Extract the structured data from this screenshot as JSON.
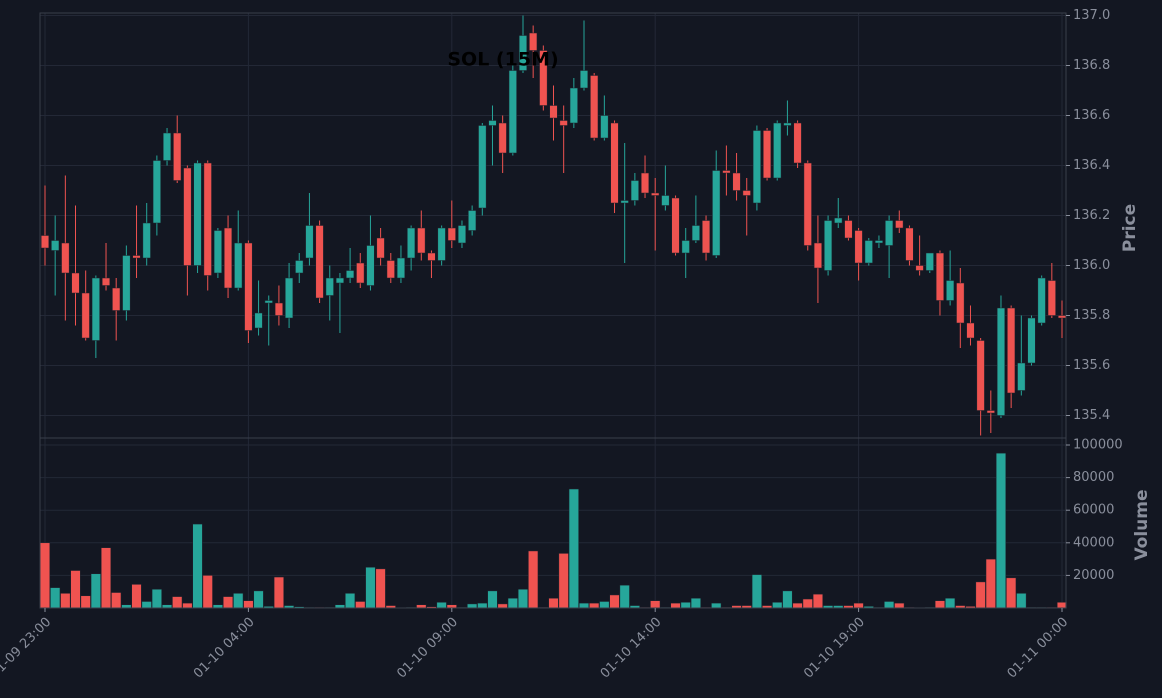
{
  "chart_data": {
    "type": "candlestick",
    "title": "SOL (15M)",
    "x": [
      "01-09 23:00",
      "01-09 23:15",
      "01-09 23:30",
      "01-09 23:45",
      "01-10 00:00",
      "01-10 00:15",
      "01-10 00:30",
      "01-10 00:45",
      "01-10 01:00",
      "01-10 01:15",
      "01-10 01:30",
      "01-10 01:45",
      "01-10 02:00",
      "01-10 02:15",
      "01-10 02:30",
      "01-10 02:45",
      "01-10 03:00",
      "01-10 03:15",
      "01-10 03:30",
      "01-10 03:45",
      "01-10 04:00",
      "01-10 04:15",
      "01-10 04:30",
      "01-10 04:45",
      "01-10 05:00",
      "01-10 05:15",
      "01-10 05:30",
      "01-10 05:45",
      "01-10 06:00",
      "01-10 06:15",
      "01-10 06:30",
      "01-10 06:45",
      "01-10 07:00",
      "01-10 07:15",
      "01-10 07:30",
      "01-10 07:45",
      "01-10 08:00",
      "01-10 08:15",
      "01-10 08:30",
      "01-10 08:45",
      "01-10 09:00",
      "01-10 09:15",
      "01-10 09:30",
      "01-10 09:45",
      "01-10 10:00",
      "01-10 10:15",
      "01-10 10:30",
      "01-10 10:45",
      "01-10 11:00",
      "01-10 11:15",
      "01-10 11:30",
      "01-10 11:45",
      "01-10 12:00",
      "01-10 12:15",
      "01-10 12:30",
      "01-10 12:45",
      "01-10 13:00",
      "01-10 13:15",
      "01-10 13:30",
      "01-10 13:45",
      "01-10 14:00",
      "01-10 14:15",
      "01-10 14:30",
      "01-10 14:45",
      "01-10 15:00",
      "01-10 15:15",
      "01-10 15:30",
      "01-10 15:45",
      "01-10 16:00",
      "01-10 16:15",
      "01-10 16:30",
      "01-10 16:45",
      "01-10 17:00",
      "01-10 17:15",
      "01-10 17:30",
      "01-10 17:45",
      "01-10 18:00",
      "01-10 18:15",
      "01-10 18:30",
      "01-10 18:45",
      "01-10 19:00",
      "01-10 19:15",
      "01-10 19:30",
      "01-10 19:45",
      "01-10 20:00",
      "01-10 20:15",
      "01-10 20:30",
      "01-10 20:45",
      "01-10 21:00",
      "01-10 21:15",
      "01-10 21:30",
      "01-10 21:45",
      "01-10 22:00",
      "01-10 22:15",
      "01-10 22:30",
      "01-10 22:45",
      "01-10 23:00",
      "01-10 23:15",
      "01-10 23:30",
      "01-10 23:45",
      "01-11 00:00"
    ],
    "open": [
      136.12,
      136.06,
      136.09,
      135.97,
      135.89,
      135.7,
      135.95,
      135.91,
      135.82,
      136.04,
      136.03,
      136.17,
      136.42,
      136.53,
      136.39,
      136.0,
      136.41,
      135.97,
      136.15,
      135.91,
      136.09,
      135.75,
      135.85,
      135.85,
      135.79,
      135.97,
      136.03,
      136.16,
      135.88,
      135.93,
      135.95,
      136.01,
      135.92,
      136.11,
      136.02,
      135.95,
      136.03,
      136.15,
      136.05,
      136.02,
      136.15,
      136.09,
      136.14,
      136.23,
      136.56,
      136.57,
      136.45,
      136.78,
      136.93,
      136.86,
      136.64,
      136.58,
      136.57,
      136.71,
      136.76,
      136.51,
      136.57,
      136.25,
      136.26,
      136.37,
      136.29,
      136.24,
      136.27,
      136.05,
      136.1,
      136.18,
      136.04,
      136.38,
      136.37,
      136.3,
      136.25,
      136.54,
      136.35,
      136.56,
      136.57,
      136.41,
      136.09,
      135.98,
      136.17,
      136.18,
      136.14,
      136.01,
      136.09,
      136.08,
      136.18,
      136.15,
      136.0,
      135.98,
      136.05,
      135.86,
      135.93,
      135.77,
      135.7,
      135.42,
      135.4,
      135.83,
      135.5,
      135.61,
      135.77,
      135.94,
      135.8
    ],
    "high": [
      136.32,
      136.2,
      136.36,
      136.24,
      135.98,
      135.96,
      136.09,
      135.95,
      136.08,
      136.24,
      136.25,
      136.44,
      136.55,
      136.6,
      136.4,
      136.42,
      136.42,
      136.15,
      136.2,
      136.22,
      136.1,
      135.94,
      135.88,
      135.92,
      136.01,
      136.05,
      136.29,
      136.18,
      136.0,
      135.97,
      136.07,
      136.05,
      136.2,
      136.15,
      136.05,
      136.08,
      136.16,
      136.22,
      136.06,
      136.16,
      136.26,
      136.18,
      136.24,
      136.57,
      136.64,
      136.6,
      136.8,
      137.0,
      136.96,
      136.88,
      136.72,
      136.64,
      136.75,
      136.98,
      136.77,
      136.68,
      136.58,
      136.49,
      136.37,
      136.44,
      136.35,
      136.4,
      136.28,
      136.15,
      136.28,
      136.2,
      136.46,
      136.48,
      136.45,
      136.35,
      136.56,
      136.55,
      136.58,
      136.66,
      136.58,
      136.42,
      136.2,
      136.2,
      136.27,
      136.2,
      136.15,
      136.11,
      136.12,
      136.2,
      136.22,
      136.16,
      136.12,
      136.05,
      136.06,
      136.06,
      135.99,
      135.84,
      135.71,
      135.5,
      135.88,
      135.84,
      135.8,
      135.8,
      135.96,
      136.01,
      135.86
    ],
    "low": [
      136.0,
      135.88,
      135.78,
      135.76,
      135.7,
      135.63,
      135.9,
      135.7,
      135.78,
      135.95,
      136.0,
      136.12,
      136.4,
      136.33,
      135.88,
      135.97,
      135.9,
      135.95,
      135.87,
      135.9,
      135.69,
      135.72,
      135.68,
      135.76,
      135.75,
      135.93,
      136.0,
      135.85,
      135.78,
      135.73,
      135.93,
      135.91,
      135.9,
      136.0,
      135.93,
      135.93,
      135.98,
      136.02,
      135.95,
      136.0,
      136.07,
      136.07,
      136.12,
      136.2,
      136.4,
      136.37,
      136.44,
      136.77,
      136.75,
      136.62,
      136.5,
      136.37,
      136.55,
      136.7,
      136.5,
      136.5,
      136.21,
      136.01,
      136.24,
      136.27,
      136.06,
      136.22,
      136.04,
      135.95,
      136.09,
      136.02,
      136.03,
      136.28,
      136.26,
      136.12,
      136.22,
      136.34,
      136.34,
      136.52,
      136.39,
      136.06,
      135.85,
      135.96,
      136.15,
      136.1,
      135.94,
      136.0,
      136.07,
      135.95,
      136.13,
      136.0,
      135.96,
      135.97,
      135.8,
      135.84,
      135.67,
      135.68,
      135.32,
      135.33,
      135.39,
      135.43,
      135.48,
      135.6,
      135.76,
      135.79,
      135.71
    ],
    "close": [
      136.07,
      136.1,
      135.97,
      135.89,
      135.71,
      135.95,
      135.92,
      135.82,
      136.04,
      136.03,
      136.17,
      136.42,
      136.53,
      136.34,
      136.0,
      136.41,
      135.96,
      136.14,
      135.91,
      136.09,
      135.74,
      135.81,
      135.86,
      135.8,
      135.95,
      136.02,
      136.16,
      135.87,
      135.95,
      135.95,
      135.98,
      135.93,
      136.08,
      136.03,
      135.95,
      136.03,
      136.15,
      136.05,
      136.02,
      136.15,
      136.1,
      136.16,
      136.22,
      136.56,
      136.58,
      136.45,
      136.78,
      136.92,
      136.86,
      136.64,
      136.59,
      136.56,
      136.71,
      136.78,
      136.51,
      136.6,
      136.25,
      136.26,
      136.34,
      136.29,
      136.28,
      136.28,
      136.05,
      136.1,
      136.16,
      136.05,
      136.38,
      136.37,
      136.3,
      136.28,
      136.54,
      136.35,
      136.57,
      136.57,
      136.41,
      136.08,
      135.99,
      136.18,
      136.19,
      136.11,
      136.01,
      136.1,
      136.1,
      136.18,
      136.15,
      136.02,
      135.98,
      136.05,
      135.86,
      135.94,
      135.77,
      135.71,
      135.42,
      135.41,
      135.83,
      135.49,
      135.61,
      135.79,
      135.95,
      135.8,
      135.79
    ],
    "volume": [
      40000,
      12500,
      9000,
      23000,
      7500,
      21000,
      37000,
      9500,
      2000,
      14500,
      4000,
      11500,
      2000,
      7000,
      3000,
      51500,
      20000,
      2000,
      7000,
      9000,
      4500,
      10500,
      1000,
      19000,
      1500,
      800,
      500,
      500,
      500,
      2000,
      9000,
      4000,
      25000,
      24000,
      1500,
      200,
      500,
      2000,
      800,
      3500,
      2000,
      500,
      2500,
      3000,
      10500,
      2500,
      6000,
      11500,
      35000,
      500,
      6000,
      33500,
      73000,
      3000,
      3000,
      4000,
      8000,
      14000,
      1500,
      500,
      4500,
      500,
      3000,
      3500,
      6000,
      500,
      3000,
      500,
      1500,
      1500,
      20500,
      1500,
      3500,
      10500,
      3000,
      5500,
      8500,
      1500,
      1500,
      1500,
      3000,
      1000,
      500,
      4000,
      3000,
      500,
      200,
      500,
      4500,
      6000,
      1500,
      1000,
      16000,
      30000,
      95000,
      18500,
      9000,
      500,
      500,
      500,
      3500
    ],
    "up_color": "#26a69a",
    "down_color": "#ef5350",
    "ylabel": "Price",
    "y2label": "Volume",
    "ylim": [
      135.31,
      137.01
    ],
    "yticks": [
      135.4,
      135.6,
      135.8,
      {
        "value": 136,
        "label": "136.0"
      },
      136.2,
      136.4,
      136.6,
      136.8,
      {
        "value": 137,
        "label": "137.0"
      }
    ],
    "y2lim": [
      0,
      104300
    ],
    "y2ticks": [
      20000,
      40000,
      60000,
      80000,
      100000
    ],
    "xticks": [
      "01-09 23:00",
      "01-10 04:00",
      "01-10 09:00",
      "01-10 14:00",
      "01-10 19:00",
      "01-11 00:00"
    ],
    "grid": true
  }
}
